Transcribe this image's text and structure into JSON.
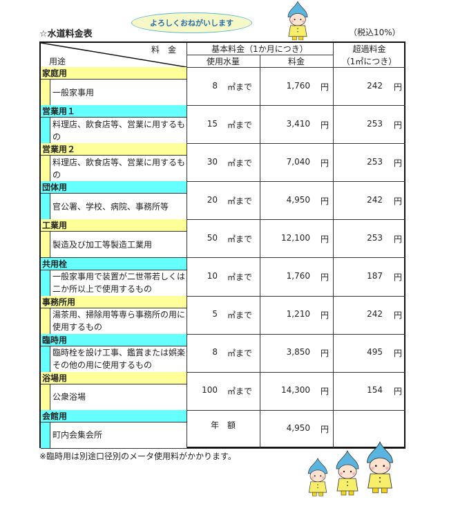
{
  "speech_bubble": "よろしくおねがいします",
  "title": "☆水道料金表",
  "tax_note": "（税込10%）",
  "header": {
    "fee_label": "料　金",
    "use_label": "用途",
    "basic_fee": "基本料金（1か月につき）",
    "usage": "使用水量",
    "fee": "料金",
    "excess_fee": "超過料金",
    "excess_unit": "（1㎡につき）"
  },
  "units": {
    "volume": "㎡まで",
    "yen": "円"
  },
  "colors": {
    "yellow": "#ffff99",
    "cyan": "#66ffff"
  },
  "rows": [
    {
      "category": "家庭用",
      "desc": "一般家事用",
      "usage": "8",
      "fee": "1,760",
      "excess": "242",
      "color": "yellow"
    },
    {
      "category": "営業用１",
      "desc": "料理店、飲食店等、営業に用するもの",
      "usage": "15",
      "fee": "3,410",
      "excess": "253",
      "color": "cyan"
    },
    {
      "category": "営業用２",
      "desc": "料理店、飲食店等、営業に用するもの",
      "usage": "30",
      "fee": "7,040",
      "excess": "253",
      "color": "yellow"
    },
    {
      "category": "団体用",
      "desc": "官公署、学校、病院、事務所等",
      "usage": "20",
      "fee": "4,950",
      "excess": "242",
      "color": "cyan"
    },
    {
      "category": "工業用",
      "desc": "製造及び加工等製造工業用",
      "usage": "50",
      "fee": "12,100",
      "excess": "253",
      "color": "yellow"
    },
    {
      "category": "共用栓",
      "desc": "一般家事用で装置が二世帯若しくは二か所以上で使用するもの",
      "usage": "10",
      "fee": "1,760",
      "excess": "187",
      "color": "cyan"
    },
    {
      "category": "事務所用",
      "desc": "湯茶用、掃除用等専ら事務所の用に使用するもの",
      "usage": "5",
      "fee": "1,210",
      "excess": "242",
      "color": "yellow"
    },
    {
      "category": "臨時用",
      "desc": "臨時栓を設け工事、鑑賞または娯楽その他の用に使用するもの",
      "usage": "8",
      "fee": "3,850",
      "excess": "495",
      "color": "cyan"
    },
    {
      "category": "浴場用",
      "desc": "公衆浴場",
      "usage": "100",
      "fee": "14,300",
      "excess": "154",
      "color": "yellow"
    },
    {
      "category": "会館用",
      "desc": "町内会集会所",
      "usage_text": "年　額",
      "fee": "4,950",
      "color": "cyan"
    }
  ],
  "footnote": "※臨時用は別途口径別のメータ使用料がかかります。",
  "mascot_icon": "water-drop-child-mascot"
}
